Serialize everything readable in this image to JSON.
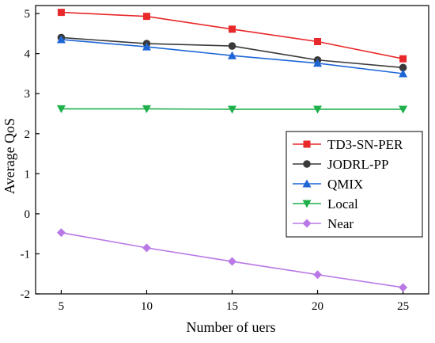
{
  "chart_data": {
    "type": "line",
    "xlabel": "Number of uers",
    "ylabel": "Average QoS",
    "x": [
      5,
      10,
      15,
      20,
      25
    ],
    "xlim": [
      3.5,
      26.5
    ],
    "ylim": [
      -2,
      5.2
    ],
    "xticks": [
      5,
      10,
      15,
      20,
      25
    ],
    "yticks": [
      -2,
      -1,
      0,
      1,
      2,
      3,
      4,
      5
    ],
    "grid": false,
    "legend_position": "right",
    "series": [
      {
        "name": "TD3-SN-PER",
        "color": "#e8282a",
        "marker": "square",
        "values": [
          5.03,
          4.93,
          4.61,
          4.3,
          3.87
        ]
      },
      {
        "name": "JODRL-PP",
        "color": "#3a3a3a",
        "marker": "circle",
        "values": [
          4.4,
          4.25,
          4.19,
          3.84,
          3.65
        ]
      },
      {
        "name": "QMIX",
        "color": "#1e66d6",
        "marker": "triangle-up",
        "values": [
          4.35,
          4.17,
          3.95,
          3.76,
          3.5
        ]
      },
      {
        "name": "Local",
        "color": "#1fb04b",
        "marker": "triangle-down",
        "values": [
          2.62,
          2.62,
          2.61,
          2.61,
          2.61
        ]
      },
      {
        "name": "Near",
        "color": "#b978e6",
        "marker": "diamond",
        "values": [
          -0.47,
          -0.85,
          -1.19,
          -1.52,
          -1.84
        ]
      }
    ]
  }
}
